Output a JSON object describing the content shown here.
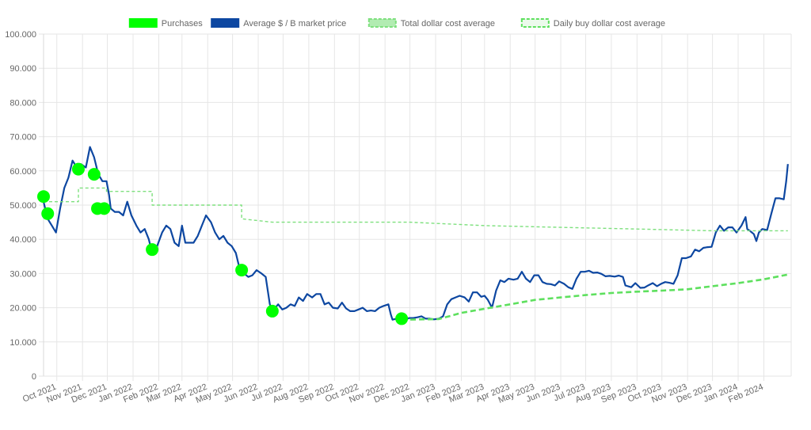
{
  "colors": {
    "grid": "#e6e6e6",
    "axis_text": "#666666",
    "purchases": "#00ff00",
    "market_price": "#0d47a1",
    "total_dca": "#7ee07e",
    "daily_dca": "#5ee05e"
  },
  "chart_data": {
    "type": "line",
    "title": "",
    "xlabel": "",
    "ylabel": "",
    "ylim": [
      0,
      100000
    ],
    "yticks": [
      0,
      10000,
      20000,
      30000,
      40000,
      50000,
      60000,
      70000,
      80000,
      90000,
      100000
    ],
    "ytick_labels": [
      "0",
      "10.000",
      "20.000",
      "30.000",
      "40.000",
      "50.000",
      "60.000",
      "70.000",
      "80.000",
      "90.000",
      "100.000"
    ],
    "xlim": [
      "2021-09-15",
      "2024-03-05"
    ],
    "xticks": [
      "2021-10-01",
      "2021-11-01",
      "2021-12-01",
      "2022-01-01",
      "2022-02-01",
      "2022-03-01",
      "2022-04-01",
      "2022-05-01",
      "2022-06-01",
      "2022-07-01",
      "2022-08-01",
      "2022-09-01",
      "2022-10-01",
      "2022-11-01",
      "2022-12-01",
      "2023-01-01",
      "2023-02-01",
      "2023-03-01",
      "2023-04-01",
      "2023-05-01",
      "2023-06-01",
      "2023-07-01",
      "2023-08-01",
      "2023-09-01",
      "2023-10-01",
      "2023-11-01",
      "2023-12-01",
      "2024-01-01",
      "2024-02-01"
    ],
    "xtick_labels": [
      "Oct 2021",
      "Nov 2021",
      "Dec 2021",
      "Jan 2022",
      "Feb 2022",
      "Mar 2022",
      "Apr 2022",
      "May 2022",
      "Jun 2022",
      "Jul 2022",
      "Aug 2022",
      "Sep 2022",
      "Oct 2022",
      "Nov 2022",
      "Dec 2022",
      "Jan 2023",
      "Feb 2023",
      "Mar 2023",
      "Apr 2023",
      "May 2023",
      "Jun 2023",
      "Jul 2023",
      "Aug 2023",
      "Sep 2023",
      "Oct 2023",
      "Nov 2023",
      "Dec 2023",
      "Jan 2024",
      "Feb 2024"
    ],
    "legend": {
      "position": "top",
      "items": [
        {
          "label": "Purchases",
          "style": "filled-box",
          "color": "#00ff00"
        },
        {
          "label": "Average $ / B market price",
          "style": "filled-box",
          "color": "#0d47a1"
        },
        {
          "label": "Total dollar cost average",
          "style": "dashed-box",
          "color": "#7ee07e"
        },
        {
          "label": "Daily buy dollar cost average",
          "style": "dashed-box",
          "color": "#5ee05e"
        }
      ]
    },
    "series": [
      {
        "name": "Average $ / B market price",
        "kind": "line",
        "color": "#0d47a1",
        "points": [
          [
            "2021-09-15",
            51000
          ],
          [
            "2021-09-20",
            46000
          ],
          [
            "2021-09-25",
            44000
          ],
          [
            "2021-09-30",
            42000
          ],
          [
            "2021-10-05",
            49000
          ],
          [
            "2021-10-10",
            55000
          ],
          [
            "2021-10-15",
            58000
          ],
          [
            "2021-10-20",
            63000
          ],
          [
            "2021-10-25",
            61000
          ],
          [
            "2021-10-30",
            62000
          ],
          [
            "2021-11-05",
            61000
          ],
          [
            "2021-11-10",
            67000
          ],
          [
            "2021-11-15",
            64000
          ],
          [
            "2021-11-20",
            59000
          ],
          [
            "2021-11-25",
            57000
          ],
          [
            "2021-11-30",
            57000
          ],
          [
            "2021-12-03",
            53000
          ],
          [
            "2021-12-05",
            49000
          ],
          [
            "2021-12-10",
            48000
          ],
          [
            "2021-12-15",
            48000
          ],
          [
            "2021-12-20",
            47000
          ],
          [
            "2021-12-25",
            51000
          ],
          [
            "2021-12-30",
            47000
          ],
          [
            "2022-01-05",
            44000
          ],
          [
            "2022-01-10",
            42000
          ],
          [
            "2022-01-15",
            43000
          ],
          [
            "2022-01-20",
            40000
          ],
          [
            "2022-01-24",
            36000
          ],
          [
            "2022-01-30",
            38000
          ],
          [
            "2022-02-05",
            42000
          ],
          [
            "2022-02-10",
            44000
          ],
          [
            "2022-02-15",
            43000
          ],
          [
            "2022-02-20",
            39000
          ],
          [
            "2022-02-25",
            38000
          ],
          [
            "2022-03-01",
            44000
          ],
          [
            "2022-03-05",
            39000
          ],
          [
            "2022-03-10",
            39000
          ],
          [
            "2022-03-15",
            39000
          ],
          [
            "2022-03-20",
            41000
          ],
          [
            "2022-03-25",
            44000
          ],
          [
            "2022-03-30",
            47000
          ],
          [
            "2022-04-05",
            45000
          ],
          [
            "2022-04-10",
            42000
          ],
          [
            "2022-04-15",
            40000
          ],
          [
            "2022-04-20",
            41000
          ],
          [
            "2022-04-25",
            39000
          ],
          [
            "2022-04-30",
            38000
          ],
          [
            "2022-05-05",
            36000
          ],
          [
            "2022-05-10",
            31000
          ],
          [
            "2022-05-15",
            30000
          ],
          [
            "2022-05-20",
            29000
          ],
          [
            "2022-05-25",
            29500
          ],
          [
            "2022-05-30",
            31000
          ],
          [
            "2022-06-05",
            30000
          ],
          [
            "2022-06-10",
            29000
          ],
          [
            "2022-06-15",
            21000
          ],
          [
            "2022-06-18",
            19000
          ],
          [
            "2022-06-25",
            21000
          ],
          [
            "2022-06-30",
            19500
          ],
          [
            "2022-07-05",
            20000
          ],
          [
            "2022-07-10",
            21000
          ],
          [
            "2022-07-15",
            20500
          ],
          [
            "2022-07-20",
            23000
          ],
          [
            "2022-07-25",
            22000
          ],
          [
            "2022-07-30",
            24000
          ],
          [
            "2022-08-05",
            23000
          ],
          [
            "2022-08-10",
            24000
          ],
          [
            "2022-08-15",
            24000
          ],
          [
            "2022-08-20",
            21000
          ],
          [
            "2022-08-25",
            21500
          ],
          [
            "2022-08-30",
            20000
          ],
          [
            "2022-09-05",
            19800
          ],
          [
            "2022-09-10",
            21500
          ],
          [
            "2022-09-15",
            19800
          ],
          [
            "2022-09-20",
            19000
          ],
          [
            "2022-09-25",
            19000
          ],
          [
            "2022-09-30",
            19500
          ],
          [
            "2022-10-05",
            20000
          ],
          [
            "2022-10-10",
            19000
          ],
          [
            "2022-10-15",
            19200
          ],
          [
            "2022-10-20",
            19000
          ],
          [
            "2022-10-25",
            20000
          ],
          [
            "2022-10-30",
            20500
          ],
          [
            "2022-11-05",
            21000
          ],
          [
            "2022-11-08",
            18000
          ],
          [
            "2022-11-10",
            16500
          ],
          [
            "2022-11-15",
            16800
          ],
          [
            "2022-11-20",
            16300
          ],
          [
            "2022-11-25",
            16500
          ],
          [
            "2022-11-30",
            17000
          ],
          [
            "2022-12-05",
            17000
          ],
          [
            "2022-12-10",
            17200
          ],
          [
            "2022-12-15",
            17500
          ],
          [
            "2022-12-20",
            16800
          ],
          [
            "2022-12-25",
            16800
          ],
          [
            "2022-12-30",
            16600
          ],
          [
            "2023-01-05",
            16800
          ],
          [
            "2023-01-10",
            17500
          ],
          [
            "2023-01-15",
            21000
          ],
          [
            "2023-01-20",
            22500
          ],
          [
            "2023-01-25",
            23000
          ],
          [
            "2023-01-30",
            23500
          ],
          [
            "2023-02-05",
            23000
          ],
          [
            "2023-02-10",
            21800
          ],
          [
            "2023-02-15",
            24500
          ],
          [
            "2023-02-20",
            24500
          ],
          [
            "2023-02-25",
            23200
          ],
          [
            "2023-03-01",
            23500
          ],
          [
            "2023-03-05",
            22300
          ],
          [
            "2023-03-10",
            20000
          ],
          [
            "2023-03-15",
            25000
          ],
          [
            "2023-03-20",
            28000
          ],
          [
            "2023-03-25",
            27500
          ],
          [
            "2023-03-30",
            28500
          ],
          [
            "2023-04-05",
            28200
          ],
          [
            "2023-04-10",
            28500
          ],
          [
            "2023-04-15",
            30500
          ],
          [
            "2023-04-20",
            28500
          ],
          [
            "2023-04-25",
            27500
          ],
          [
            "2023-04-30",
            29500
          ],
          [
            "2023-05-05",
            29500
          ],
          [
            "2023-05-10",
            27500
          ],
          [
            "2023-05-15",
            27000
          ],
          [
            "2023-05-20",
            26900
          ],
          [
            "2023-05-25",
            26500
          ],
          [
            "2023-05-30",
            27700
          ],
          [
            "2023-06-05",
            27000
          ],
          [
            "2023-06-10",
            26000
          ],
          [
            "2023-06-15",
            25500
          ],
          [
            "2023-06-20",
            28500
          ],
          [
            "2023-06-25",
            30500
          ],
          [
            "2023-06-30",
            30500
          ],
          [
            "2023-07-05",
            30800
          ],
          [
            "2023-07-10",
            30200
          ],
          [
            "2023-07-15",
            30300
          ],
          [
            "2023-07-20",
            29900
          ],
          [
            "2023-07-25",
            29200
          ],
          [
            "2023-07-30",
            29300
          ],
          [
            "2023-08-05",
            29100
          ],
          [
            "2023-08-10",
            29400
          ],
          [
            "2023-08-15",
            29000
          ],
          [
            "2023-08-18",
            26500
          ],
          [
            "2023-08-25",
            26000
          ],
          [
            "2023-08-30",
            27200
          ],
          [
            "2023-09-05",
            25800
          ],
          [
            "2023-09-10",
            25900
          ],
          [
            "2023-09-15",
            26600
          ],
          [
            "2023-09-20",
            27200
          ],
          [
            "2023-09-25",
            26300
          ],
          [
            "2023-09-30",
            27000
          ],
          [
            "2023-10-05",
            27500
          ],
          [
            "2023-10-10",
            27300
          ],
          [
            "2023-10-15",
            27000
          ],
          [
            "2023-10-20",
            29500
          ],
          [
            "2023-10-25",
            34500
          ],
          [
            "2023-10-30",
            34500
          ],
          [
            "2023-11-05",
            35000
          ],
          [
            "2023-11-10",
            37000
          ],
          [
            "2023-11-15",
            36500
          ],
          [
            "2023-11-20",
            37500
          ],
          [
            "2023-11-25",
            37700
          ],
          [
            "2023-11-30",
            37800
          ],
          [
            "2023-12-05",
            42000
          ],
          [
            "2023-12-10",
            44000
          ],
          [
            "2023-12-15",
            42500
          ],
          [
            "2023-12-20",
            43500
          ],
          [
            "2023-12-25",
            43500
          ],
          [
            "2023-12-30",
            42000
          ],
          [
            "2024-01-05",
            44000
          ],
          [
            "2024-01-10",
            46500
          ],
          [
            "2024-01-12",
            43000
          ],
          [
            "2024-01-15",
            42500
          ],
          [
            "2024-01-20",
            41500
          ],
          [
            "2024-01-23",
            39500
          ],
          [
            "2024-01-26",
            42000
          ],
          [
            "2024-01-30",
            43000
          ],
          [
            "2024-02-05",
            42700
          ],
          [
            "2024-02-10",
            47500
          ],
          [
            "2024-02-15",
            52000
          ],
          [
            "2024-02-20",
            52000
          ],
          [
            "2024-02-25",
            51700
          ],
          [
            "2024-02-28",
            57000
          ],
          [
            "2024-03-01",
            62000
          ]
        ]
      },
      {
        "name": "Total dollar cost average",
        "kind": "dashed-line",
        "color": "#7ee07e",
        "points": [
          [
            "2021-09-15",
            51000
          ],
          [
            "2021-10-27",
            51000
          ],
          [
            "2021-10-27",
            55000
          ],
          [
            "2021-11-30",
            55000
          ],
          [
            "2021-11-30",
            54000
          ],
          [
            "2022-01-24",
            54000
          ],
          [
            "2022-01-24",
            50000
          ],
          [
            "2022-05-12",
            50000
          ],
          [
            "2022-05-12",
            46000
          ],
          [
            "2022-06-18",
            45000
          ],
          [
            "2022-12-01",
            45000
          ],
          [
            "2023-03-01",
            44000
          ],
          [
            "2023-06-01",
            43500
          ],
          [
            "2023-09-01",
            43000
          ],
          [
            "2023-12-01",
            42500
          ],
          [
            "2024-03-01",
            42500
          ]
        ]
      },
      {
        "name": "Daily buy dollar cost average",
        "kind": "dashed-line",
        "color": "#5ee05e",
        "points": [
          [
            "2022-11-21",
            16500
          ],
          [
            "2023-01-05",
            16700
          ],
          [
            "2023-02-01",
            18500
          ],
          [
            "2023-03-01",
            19700
          ],
          [
            "2023-04-01",
            21000
          ],
          [
            "2023-05-01",
            22300
          ],
          [
            "2023-06-01",
            23000
          ],
          [
            "2023-07-01",
            23700
          ],
          [
            "2023-08-01",
            24300
          ],
          [
            "2023-09-01",
            24700
          ],
          [
            "2023-10-01",
            25000
          ],
          [
            "2023-11-01",
            25400
          ],
          [
            "2023-12-01",
            26300
          ],
          [
            "2024-01-01",
            27200
          ],
          [
            "2024-02-01",
            28300
          ],
          [
            "2024-03-01",
            29700
          ]
        ]
      },
      {
        "name": "Purchases",
        "kind": "scatter",
        "color": "#00ff00",
        "points": [
          [
            "2021-09-15",
            52500
          ],
          [
            "2021-09-20",
            47500
          ],
          [
            "2021-10-27",
            60500
          ],
          [
            "2021-11-15",
            59000
          ],
          [
            "2021-11-19",
            49000
          ],
          [
            "2021-11-27",
            49000
          ],
          [
            "2022-01-24",
            37000
          ],
          [
            "2022-05-12",
            31000
          ],
          [
            "2022-06-18",
            19000
          ],
          [
            "2022-11-21",
            16800
          ]
        ]
      }
    ]
  }
}
